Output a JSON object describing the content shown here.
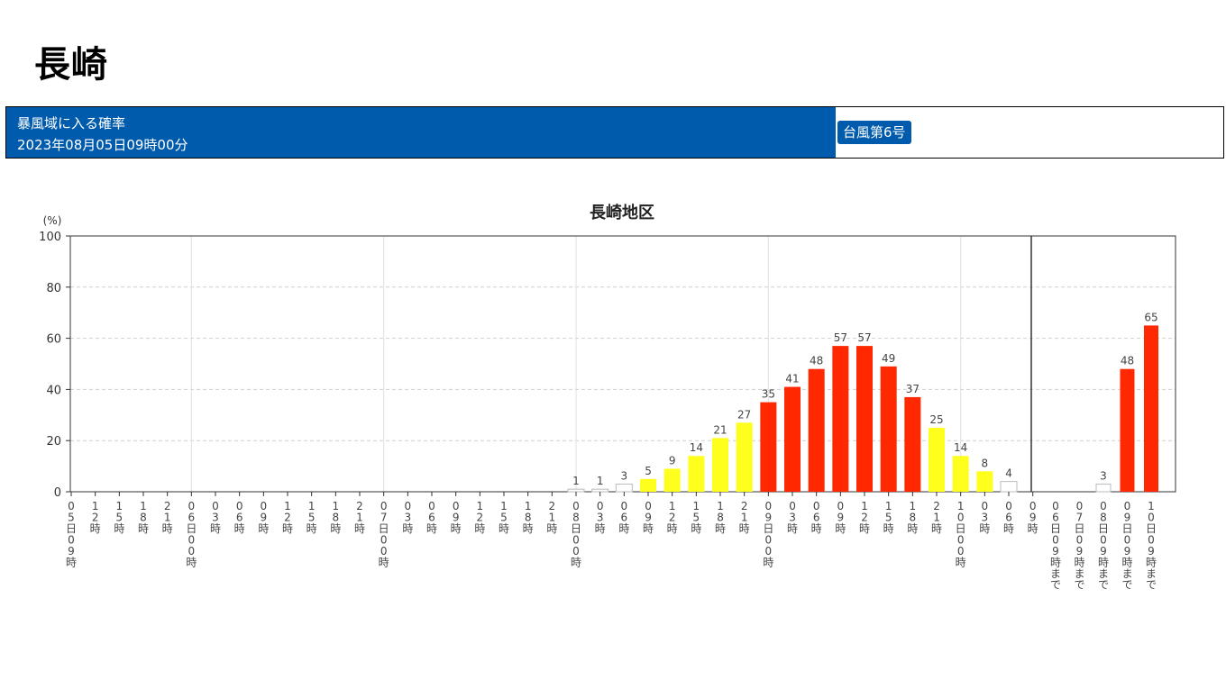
{
  "page": {
    "title": "長崎",
    "header": {
      "line1": "暴風域に入る確率",
      "line2": "2023年08月05日09時00分",
      "badge": "台風第6号"
    }
  },
  "chart_data": {
    "type": "bar",
    "title": "長崎地区",
    "yunit": "(%)",
    "ylim": [
      0,
      100
    ],
    "yticks": [
      0,
      20,
      40,
      60,
      80,
      100
    ],
    "grid": true,
    "colors": {
      "white": "#ffffff",
      "yellow": "#ffff1e",
      "red": "#ff2800"
    },
    "categories": [
      "05日09時",
      "12時",
      "15時",
      "18時",
      "21時",
      "06日00時",
      "03時",
      "06時",
      "09時",
      "12時",
      "15時",
      "18時",
      "21時",
      "07日00時",
      "03時",
      "06時",
      "09時",
      "12時",
      "15時",
      "18時",
      "21時",
      "08日00時",
      "03時",
      "06時",
      "09時",
      "12時",
      "15時",
      "18時",
      "21時",
      "09日00時",
      "03時",
      "06時",
      "09時",
      "12時",
      "15時",
      "18時",
      "21時",
      "10日00時",
      "03時",
      "06時",
      "09時"
    ],
    "values": [
      null,
      null,
      null,
      null,
      null,
      null,
      null,
      null,
      null,
      null,
      null,
      null,
      null,
      null,
      null,
      null,
      null,
      null,
      null,
      null,
      null,
      1,
      1,
      3,
      5,
      9,
      14,
      21,
      27,
      35,
      41,
      48,
      57,
      57,
      49,
      37,
      25,
      14,
      8,
      4,
      null
    ],
    "levels": [
      null,
      null,
      null,
      null,
      null,
      null,
      null,
      null,
      null,
      null,
      null,
      null,
      null,
      null,
      null,
      null,
      null,
      null,
      null,
      null,
      null,
      "white",
      "white",
      "white",
      "yellow",
      "yellow",
      "yellow",
      "yellow",
      "yellow",
      "red",
      "red",
      "red",
      "red",
      "red",
      "red",
      "red",
      "yellow",
      "yellow",
      "yellow",
      "white",
      null
    ],
    "cumulative": {
      "categories": [
        "06日09時まで",
        "07日09時まで",
        "08日09時まで",
        "09日09時まで",
        "10日09時まで"
      ],
      "values": [
        null,
        null,
        3,
        48,
        65
      ],
      "levels": [
        null,
        null,
        "white",
        "red",
        "red"
      ]
    }
  }
}
